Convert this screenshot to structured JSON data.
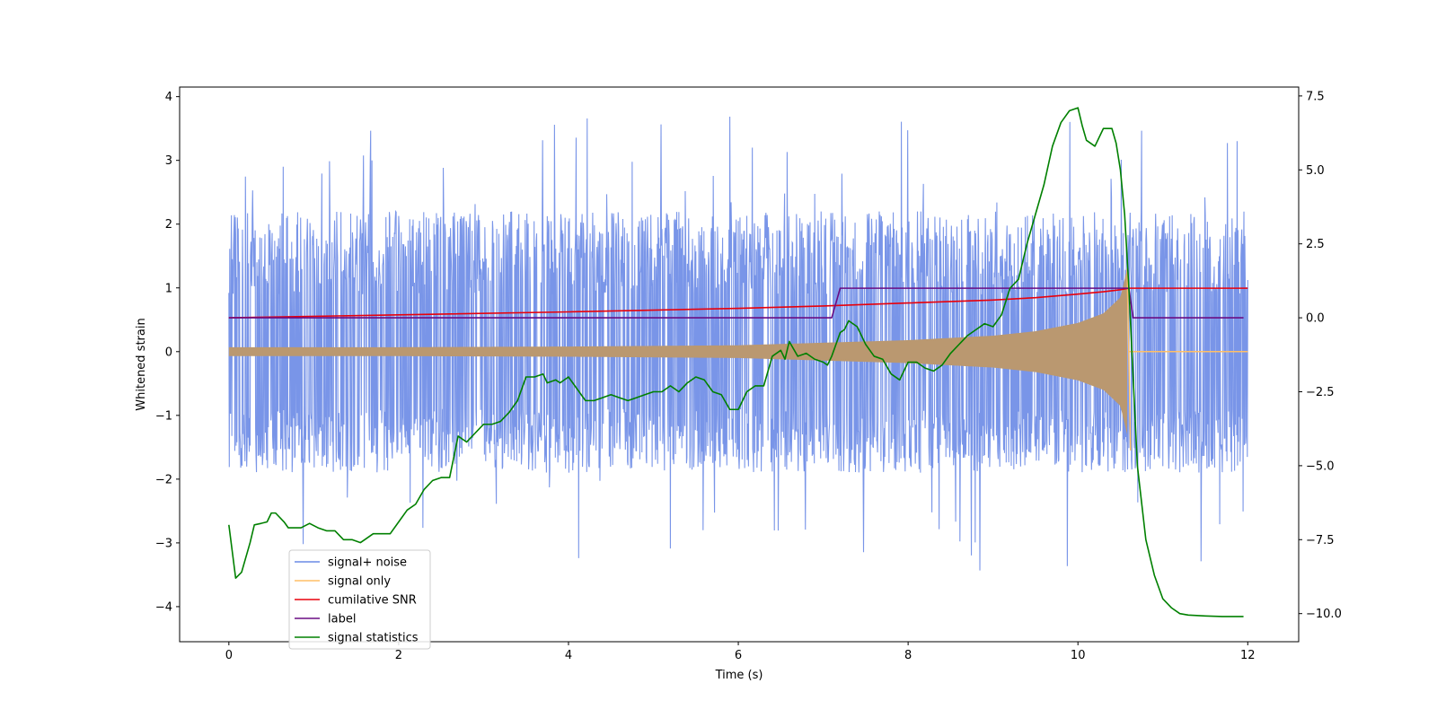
{
  "chart_data": {
    "type": "line",
    "xlabel": "Time (s)",
    "ylabel": "Whitened strain",
    "xlim": [
      -0.58,
      12.6
    ],
    "ylim": [
      -4.55,
      4.15
    ],
    "y2lim": [
      -10.95,
      7.8
    ],
    "xticks": [
      0,
      2,
      4,
      6,
      8,
      10,
      12
    ],
    "yticks": [
      -4,
      -3,
      -2,
      -1,
      0,
      1,
      2,
      3,
      4
    ],
    "y2ticks": [
      -10.0,
      -7.5,
      -5.0,
      -2.5,
      0.0,
      2.5,
      5.0,
      7.5
    ],
    "xtick_labels": [
      "0",
      "2",
      "4",
      "6",
      "8",
      "10",
      "12"
    ],
    "ytick_labels": [
      "−4",
      "−3",
      "−2",
      "−1",
      "0",
      "1",
      "2",
      "3",
      "4"
    ],
    "y2tick_labels": [
      "−10.0",
      "−7.5",
      "−5.0",
      "−2.5",
      "0.0",
      "2.5",
      "5.0",
      "7.5"
    ],
    "legend_position": "lower-left",
    "grid": false,
    "series": [
      {
        "name": "signal+ noise",
        "axis": "left",
        "color": "#6a8ae6",
        "x_range": [
          0,
          12
        ],
        "typical_range": [
          -1.8,
          2.5
        ],
        "max": 3.75,
        "min": -3.45
      },
      {
        "name": "signal only",
        "axis": "left",
        "color": "#ffbf66",
        "envelope": {
          "x": [
            0,
            2,
            4,
            6,
            7,
            8,
            9,
            9.5,
            10,
            10.3,
            10.5,
            10.58,
            10.6,
            12
          ],
          "amp": [
            0.07,
            0.07,
            0.08,
            0.1,
            0.14,
            0.18,
            0.25,
            0.32,
            0.45,
            0.6,
            0.85,
            1.3,
            0.0,
            0.0
          ]
        }
      },
      {
        "name": "cumilative SNR",
        "axis": "right",
        "color": "#e8000b",
        "x": [
          0,
          2,
          4,
          6,
          7,
          8,
          9,
          9.5,
          10,
          10.3,
          10.5,
          10.6,
          12
        ],
        "y": [
          0.0,
          0.1,
          0.2,
          0.32,
          0.4,
          0.5,
          0.6,
          0.68,
          0.8,
          0.88,
          0.95,
          1.0,
          1.0
        ]
      },
      {
        "name": "label",
        "axis": "right",
        "color": "#6a0d83",
        "x": [
          0,
          7.1,
          7.2,
          10.6,
          10.65,
          11.95
        ],
        "y": [
          0.0,
          0.0,
          1.0,
          1.0,
          0.0,
          0.0
        ]
      },
      {
        "name": "signal statistics",
        "axis": "right",
        "color": "#008000",
        "x": [
          0.0,
          0.08,
          0.15,
          0.25,
          0.3,
          0.38,
          0.45,
          0.5,
          0.55,
          0.65,
          0.7,
          0.75,
          0.85,
          0.95,
          1.05,
          1.15,
          1.25,
          1.35,
          1.45,
          1.55,
          1.6,
          1.7,
          1.8,
          1.9,
          2.0,
          2.1,
          2.2,
          2.3,
          2.4,
          2.5,
          2.6,
          2.7,
          2.8,
          2.9,
          3.0,
          3.1,
          3.2,
          3.3,
          3.4,
          3.5,
          3.6,
          3.7,
          3.75,
          3.85,
          3.9,
          4.0,
          4.1,
          4.2,
          4.3,
          4.4,
          4.5,
          4.6,
          4.7,
          4.8,
          4.9,
          5.0,
          5.1,
          5.2,
          5.3,
          5.4,
          5.5,
          5.6,
          5.7,
          5.8,
          5.9,
          6.0,
          6.1,
          6.2,
          6.3,
          6.4,
          6.5,
          6.55,
          6.6,
          6.7,
          6.8,
          6.9,
          7.0,
          7.05,
          7.1,
          7.2,
          7.25,
          7.3,
          7.4,
          7.5,
          7.6,
          7.7,
          7.8,
          7.9,
          8.0,
          8.1,
          8.2,
          8.3,
          8.4,
          8.5,
          8.6,
          8.7,
          8.8,
          8.9,
          9.0,
          9.1,
          9.2,
          9.3,
          9.4,
          9.5,
          9.6,
          9.7,
          9.8,
          9.9,
          10.0,
          10.05,
          10.1,
          10.2,
          10.3,
          10.4,
          10.45,
          10.5,
          10.55,
          10.6,
          10.7,
          10.8,
          10.9,
          11.0,
          11.1,
          11.2,
          11.3,
          11.5,
          11.7,
          11.95
        ],
        "y": [
          -7.0,
          -8.8,
          -8.6,
          -7.6,
          -7.0,
          -6.95,
          -6.9,
          -6.6,
          -6.6,
          -6.9,
          -7.1,
          -7.1,
          -7.1,
          -6.95,
          -7.1,
          -7.2,
          -7.2,
          -7.5,
          -7.5,
          -7.6,
          -7.5,
          -7.3,
          -7.3,
          -7.3,
          -6.9,
          -6.5,
          -6.3,
          -5.8,
          -5.5,
          -5.4,
          -5.4,
          -4.0,
          -4.2,
          -3.9,
          -3.6,
          -3.6,
          -3.5,
          -3.2,
          -2.8,
          -2.0,
          -2.0,
          -1.9,
          -2.2,
          -2.1,
          -2.2,
          -2.0,
          -2.4,
          -2.8,
          -2.8,
          -2.7,
          -2.6,
          -2.7,
          -2.8,
          -2.7,
          -2.6,
          -2.5,
          -2.5,
          -2.3,
          -2.5,
          -2.2,
          -2.0,
          -2.1,
          -2.5,
          -2.6,
          -3.1,
          -3.1,
          -2.5,
          -2.3,
          -2.3,
          -1.3,
          -1.1,
          -1.4,
          -0.8,
          -1.3,
          -1.2,
          -1.4,
          -1.5,
          -1.6,
          -1.3,
          -0.5,
          -0.4,
          -0.1,
          -0.3,
          -0.9,
          -1.3,
          -1.4,
          -1.9,
          -2.1,
          -1.5,
          -1.5,
          -1.7,
          -1.8,
          -1.6,
          -1.2,
          -0.9,
          -0.6,
          -0.4,
          -0.2,
          -0.3,
          0.1,
          1.0,
          1.3,
          2.5,
          3.5,
          4.5,
          5.8,
          6.6,
          7.0,
          7.1,
          6.5,
          6.0,
          5.8,
          6.4,
          6.4,
          5.9,
          5.0,
          3.5,
          1.0,
          -5.0,
          -7.5,
          -8.7,
          -9.5,
          -9.8,
          -10.0,
          -10.05,
          -10.08,
          -10.1,
          -10.1
        ]
      }
    ]
  }
}
